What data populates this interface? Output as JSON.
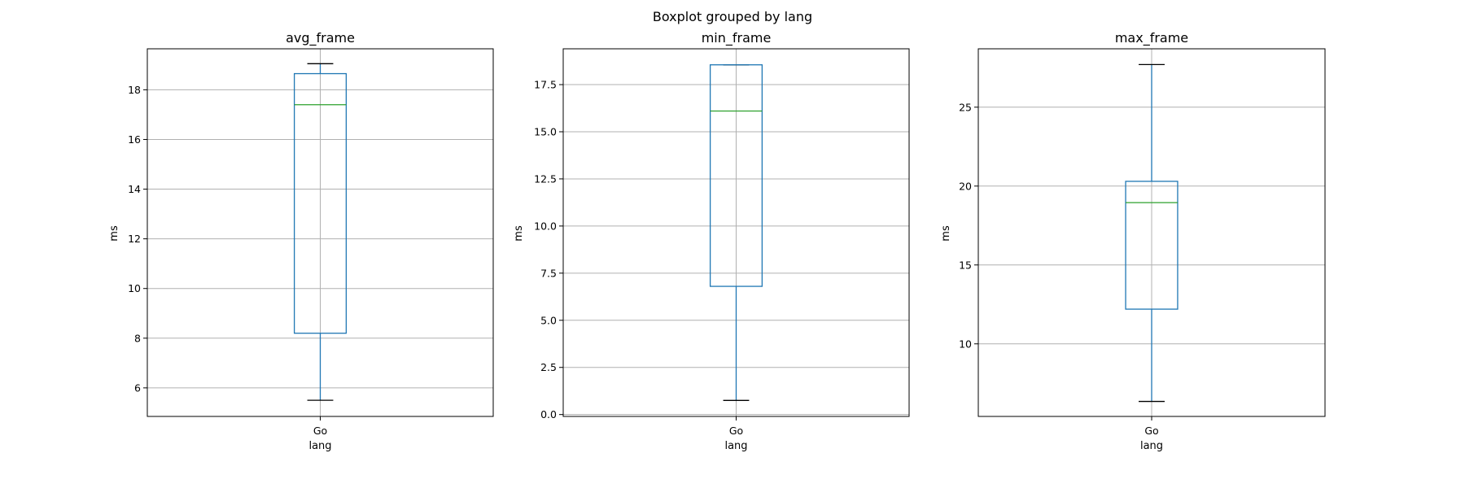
{
  "suptitle": "Boxplot grouped by lang",
  "colors": {
    "box": "#1f77b4",
    "median": "#2ca02c",
    "cap": "#000000",
    "grid": "#b0b0b0",
    "axes": "#000000"
  },
  "chart_data": [
    {
      "type": "box",
      "title": "avg_frame",
      "xlabel": "lang",
      "ylabel": "ms",
      "categories": [
        "Go"
      ],
      "ylim": [
        4.85,
        19.65
      ],
      "yticks": [
        6,
        8,
        10,
        12,
        14,
        16,
        18
      ],
      "ytick_labels": [
        "6",
        "8",
        "10",
        "12",
        "14",
        "16",
        "18"
      ],
      "grid": true,
      "boxes": [
        {
          "label": "Go",
          "whislo": 5.5,
          "q1": 8.2,
          "median": 17.4,
          "q3": 18.65,
          "whishi": 19.05
        }
      ]
    },
    {
      "type": "box",
      "title": "min_frame",
      "xlabel": "lang",
      "ylabel": "ms",
      "categories": [
        "Go"
      ],
      "ylim": [
        -0.1,
        19.4
      ],
      "yticks": [
        0.0,
        2.5,
        5.0,
        7.5,
        10.0,
        12.5,
        15.0,
        17.5
      ],
      "ytick_labels": [
        "0.0",
        "2.5",
        "5.0",
        "7.5",
        "10.0",
        "12.5",
        "15.0",
        "17.5"
      ],
      "grid": true,
      "boxes": [
        {
          "label": "Go",
          "whislo": 0.75,
          "q1": 6.8,
          "median": 16.1,
          "q3": 18.55,
          "whishi": 18.55
        }
      ]
    },
    {
      "type": "box",
      "title": "max_frame",
      "xlabel": "lang",
      "ylabel": "ms",
      "categories": [
        "Go"
      ],
      "ylim": [
        5.4,
        28.7
      ],
      "yticks": [
        10,
        15,
        20,
        25
      ],
      "ytick_labels": [
        "10",
        "15",
        "20",
        "25"
      ],
      "grid": true,
      "boxes": [
        {
          "label": "Go",
          "whislo": 6.35,
          "q1": 12.2,
          "median": 18.95,
          "q3": 20.3,
          "whishi": 27.7
        }
      ]
    }
  ]
}
